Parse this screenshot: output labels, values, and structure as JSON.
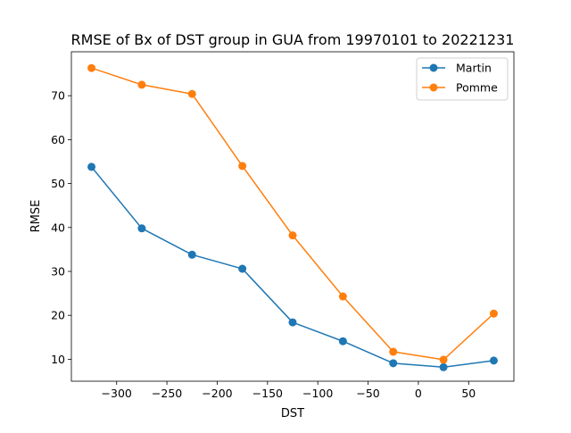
{
  "chart_data": {
    "type": "line",
    "title": "RMSE of Bx of DST group in GUA from 19970101 to 20221231",
    "xlabel": "DST",
    "ylabel": "RMSE",
    "xlim": [
      -345,
      95
    ],
    "ylim": [
      5.0,
      80.0
    ],
    "xticks": [
      -300,
      -250,
      -200,
      -150,
      -100,
      -50,
      0,
      50
    ],
    "xtick_labels": [
      "−300",
      "−250",
      "−200",
      "−150",
      "−100",
      "−50",
      "0",
      "50"
    ],
    "yticks": [
      10,
      20,
      30,
      40,
      50,
      60,
      70
    ],
    "ytick_labels": [
      "10",
      "20",
      "30",
      "40",
      "50",
      "60",
      "70"
    ],
    "x": [
      -325,
      -275,
      -225,
      -175,
      -125,
      -75,
      -25,
      25,
      75
    ],
    "series": [
      {
        "name": "Martin",
        "color": "#1f77b4",
        "values": [
          53.8,
          39.8,
          33.8,
          30.6,
          18.4,
          14.1,
          9.1,
          8.2,
          9.7
        ]
      },
      {
        "name": "Pomme",
        "color": "#ff7f0e",
        "values": [
          76.3,
          72.5,
          70.4,
          54.0,
          38.2,
          24.3,
          11.7,
          9.9,
          20.4
        ]
      }
    ],
    "grid": false,
    "legend_position": "top-right"
  }
}
